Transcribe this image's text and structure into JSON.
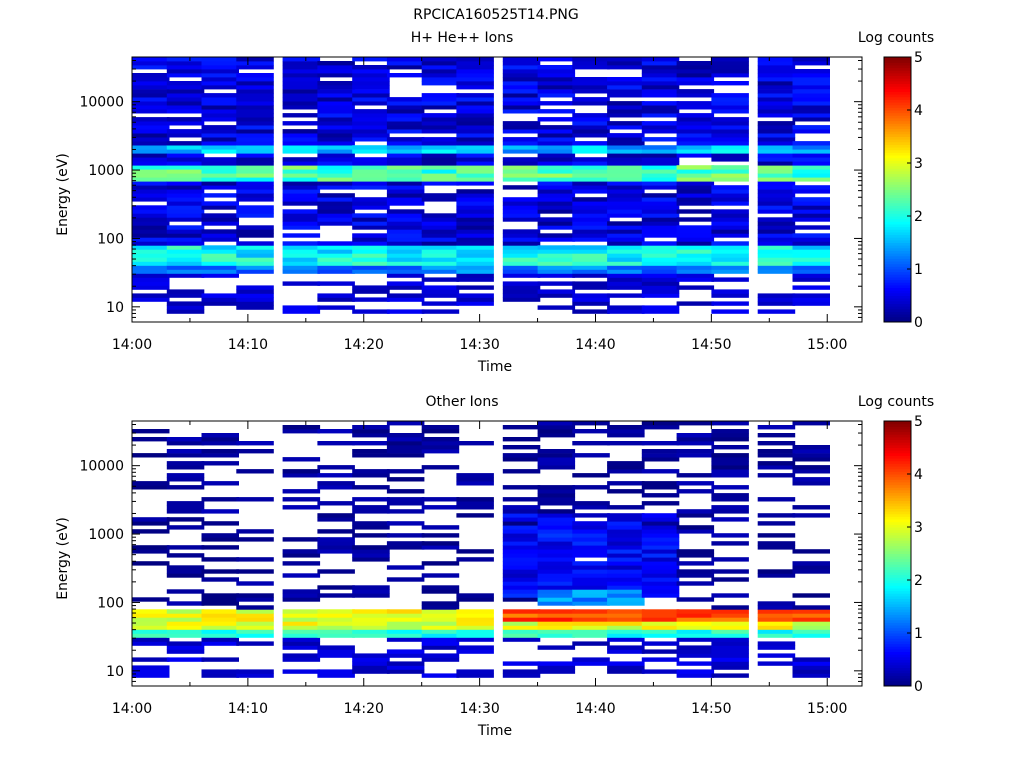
{
  "figure_title": "RPCICA160525T14.PNG",
  "chart_data": [
    {
      "type": "heatmap",
      "title": "H+ He++ Ions",
      "xlabel": "Time",
      "ylabel": "Energy (eV)",
      "y_scale": "log",
      "ylim": [
        6,
        45000
      ],
      "y_ticks": [
        10,
        100,
        1000,
        10000
      ],
      "y_tick_labels": [
        "10",
        "100",
        "1000",
        "10000"
      ],
      "xlim": [
        "14:00",
        "15:03"
      ],
      "x_tick_labels": [
        "14:00",
        "14:10",
        "14:20",
        "14:30",
        "14:40",
        "14:50",
        "15:00"
      ],
      "time_bins_start": [
        "14:00",
        "14:03",
        "14:06",
        "14:09",
        "14:13",
        "14:16",
        "14:19",
        "14:22",
        "14:25",
        "14:28",
        "14:32",
        "14:35",
        "14:38",
        "14:41",
        "14:44",
        "14:47",
        "14:50",
        "14:54",
        "14:57"
      ],
      "time_bin_minutes": 3.2,
      "colorbar": {
        "label": "Log counts",
        "range": [
          0,
          5
        ],
        "ticks": [
          0,
          1,
          2,
          3,
          4,
          5
        ],
        "colormap": "jet"
      },
      "features": [
        {
          "emin": 8,
          "emax": 45000,
          "base": 0.45,
          "noise": 0.35,
          "hole_frac": 0.16
        },
        {
          "emin": 1700,
          "emax": 2400,
          "base": 1.55,
          "noise": 0.4
        },
        {
          "emin": 650,
          "emax": 1150,
          "base": 2.25,
          "noise": 0.45
        },
        {
          "emin": 42,
          "emax": 75,
          "base": 1.9,
          "noise": 0.4
        },
        {
          "emin": 30,
          "emax": 40,
          "base": 1.2,
          "noise": 0.3
        }
      ]
    },
    {
      "type": "heatmap",
      "title": "Other Ions",
      "xlabel": "Time",
      "ylabel": "Energy (eV)",
      "y_scale": "log",
      "ylim": [
        6,
        45000
      ],
      "y_ticks": [
        10,
        100,
        1000,
        10000
      ],
      "y_tick_labels": [
        "10",
        "100",
        "1000",
        "10000"
      ],
      "xlim": [
        "14:00",
        "15:03"
      ],
      "x_tick_labels": [
        "14:00",
        "14:10",
        "14:20",
        "14:30",
        "14:40",
        "14:50",
        "15:00"
      ],
      "time_bins_start": [
        "14:00",
        "14:03",
        "14:06",
        "14:09",
        "14:13",
        "14:16",
        "14:19",
        "14:22",
        "14:25",
        "14:28",
        "14:32",
        "14:35",
        "14:38",
        "14:41",
        "14:44",
        "14:47",
        "14:50",
        "14:54",
        "14:57"
      ],
      "time_bin_minutes": 3.2,
      "colorbar": {
        "label": "Log counts",
        "range": [
          0,
          5
        ],
        "ticks": [
          0,
          1,
          2,
          3,
          4,
          5
        ],
        "colormap": "jet"
      },
      "features": [
        {
          "emin": 8,
          "emax": 45000,
          "base": 0.15,
          "noise": 0.15,
          "hole_frac": 0.6
        },
        {
          "emin": 120,
          "emax": 2000,
          "base": 0.6,
          "noise": 0.3,
          "hole_frac": 0.05,
          "tmin": "14:32",
          "tmax": "14:44"
        },
        {
          "emin": 90,
          "emax": 160,
          "base": 1.3,
          "noise": 0.3,
          "tmin": "14:35",
          "tmax": "14:41"
        },
        {
          "emin": 40,
          "emax": 75,
          "base": 3.0,
          "noise": 0.35
        },
        {
          "emin": 55,
          "emax": 75,
          "base": 4.0,
          "noise": 0.3,
          "tmin": "14:32",
          "tmax": "15:03"
        },
        {
          "emin": 32,
          "emax": 40,
          "base": 2.0,
          "noise": 0.3
        }
      ]
    }
  ]
}
